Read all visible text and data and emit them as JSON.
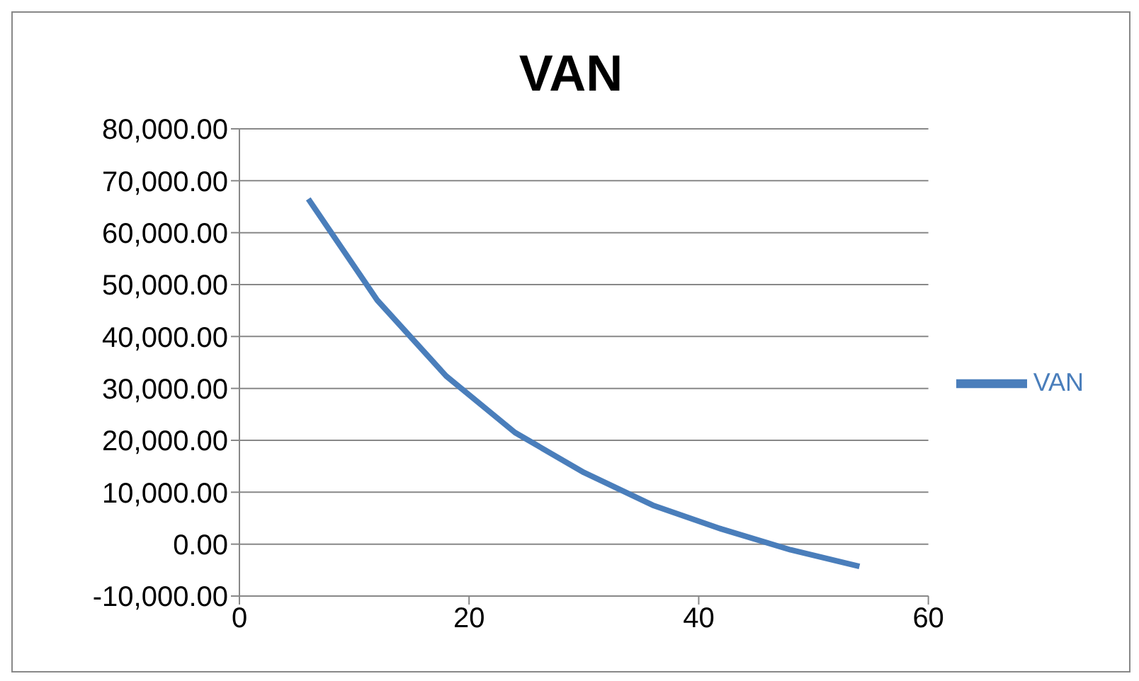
{
  "chart_data": {
    "type": "line",
    "title": "VAN",
    "x": [
      6,
      12,
      18,
      24,
      30,
      36,
      42,
      48,
      54
    ],
    "series": [
      {
        "name": "VAN",
        "color": "#4a7ebb",
        "values": [
          66500,
          47000,
          32400,
          21500,
          13800,
          7500,
          2900,
          -1100,
          -4300
        ]
      }
    ],
    "xlim": [
      0,
      60
    ],
    "xticks": [
      0,
      20,
      40,
      60
    ],
    "ylim": [
      -10000,
      80000
    ],
    "yticks": [
      {
        "value": -10000,
        "label": "-10,000.00"
      },
      {
        "value": 0,
        "label": "0.00"
      },
      {
        "value": 10000,
        "label": "10,000.00"
      },
      {
        "value": 20000,
        "label": "20,000.00"
      },
      {
        "value": 30000,
        "label": "30,000.00"
      },
      {
        "value": 40000,
        "label": "40,000.00"
      },
      {
        "value": 50000,
        "label": "50,000.00"
      },
      {
        "value": 60000,
        "label": "60,000.00"
      },
      {
        "value": 70000,
        "label": "70,000.00"
      },
      {
        "value": 80000,
        "label": "80,000.00"
      }
    ],
    "grid": "y",
    "legend": "right",
    "marker": "none",
    "line_style": "solid"
  }
}
